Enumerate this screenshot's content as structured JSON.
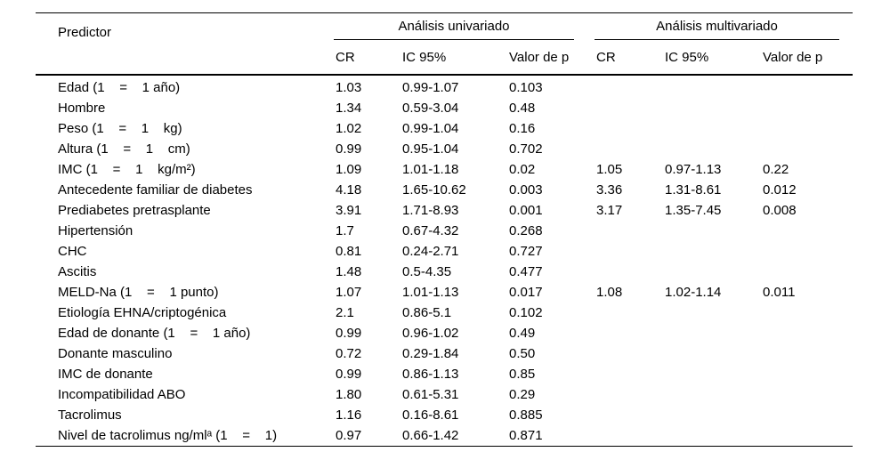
{
  "colors": {
    "background": "#ffffff",
    "text": "#000000",
    "rule": "#000000"
  },
  "table": {
    "header": {
      "predictor": "Predictor",
      "group_univariate": "Análisis univariado",
      "group_multivariate": "Análisis multivariado",
      "subheaders": [
        "CR",
        "IC 95%",
        "Valor de p",
        "CR",
        "IC 95%",
        "Valor de p"
      ]
    },
    "rows": [
      {
        "predictor": "Edad (1    =    1 año)",
        "uni_cr": "1.03",
        "uni_ic": "0.99-1.07",
        "uni_p": "0.103",
        "multi_cr": "",
        "multi_ic": "",
        "multi_p": ""
      },
      {
        "predictor": "Hombre",
        "uni_cr": "1.34",
        "uni_ic": "0.59-3.04",
        "uni_p": "0.48",
        "multi_cr": "",
        "multi_ic": "",
        "multi_p": ""
      },
      {
        "predictor": "Peso (1    =    1    kg)",
        "uni_cr": "1.02",
        "uni_ic": "0.99-1.04",
        "uni_p": "0.16",
        "multi_cr": "",
        "multi_ic": "",
        "multi_p": ""
      },
      {
        "predictor": "Altura (1    =    1    cm)",
        "uni_cr": "0.99",
        "uni_ic": "0.95-1.04",
        "uni_p": "0.702",
        "multi_cr": "",
        "multi_ic": "",
        "multi_p": ""
      },
      {
        "predictor": "IMC (1    =    1    kg/m²)",
        "uni_cr": "1.09",
        "uni_ic": "1.01-1.18",
        "uni_p": "0.02",
        "multi_cr": "1.05",
        "multi_ic": "0.97-1.13",
        "multi_p": "0.22"
      },
      {
        "predictor": "Antecedente familiar de diabetes",
        "uni_cr": "4.18",
        "uni_ic": "1.65-10.62",
        "uni_p": "0.003",
        "multi_cr": "3.36",
        "multi_ic": "1.31-8.61",
        "multi_p": "0.012"
      },
      {
        "predictor": "Prediabetes pretrasplante",
        "uni_cr": "3.91",
        "uni_ic": "1.71-8.93",
        "uni_p": "0.001",
        "multi_cr": "3.17",
        "multi_ic": "1.35-7.45",
        "multi_p": "0.008"
      },
      {
        "predictor": "Hipertensión",
        "uni_cr": "1.7",
        "uni_ic": "0.67-4.32",
        "uni_p": "0.268",
        "multi_cr": "",
        "multi_ic": "",
        "multi_p": ""
      },
      {
        "predictor": "CHC",
        "uni_cr": "0.81",
        "uni_ic": "0.24-2.71",
        "uni_p": "0.727",
        "multi_cr": "",
        "multi_ic": "",
        "multi_p": ""
      },
      {
        "predictor": "Ascitis",
        "uni_cr": "1.48",
        "uni_ic": "0.5-4.35",
        "uni_p": "0.477",
        "multi_cr": "",
        "multi_ic": "",
        "multi_p": ""
      },
      {
        "predictor": "MELD-Na (1    =    1 punto)",
        "uni_cr": "1.07",
        "uni_ic": "1.01-1.13",
        "uni_p": "0.017",
        "multi_cr": "1.08",
        "multi_ic": "1.02-1.14",
        "multi_p": "0.011"
      },
      {
        "predictor": "Etiología EHNA/criptogénica",
        "uni_cr": "2.1",
        "uni_ic": "0.86-5.1",
        "uni_p": "0.102",
        "multi_cr": "",
        "multi_ic": "",
        "multi_p": ""
      },
      {
        "predictor": "Edad de donante (1    =    1 año)",
        "uni_cr": "0.99",
        "uni_ic": "0.96-1.02",
        "uni_p": "0.49",
        "multi_cr": "",
        "multi_ic": "",
        "multi_p": ""
      },
      {
        "predictor": "Donante masculino",
        "uni_cr": "0.72",
        "uni_ic": "0.29-1.84",
        "uni_p": "0.50",
        "multi_cr": "",
        "multi_ic": "",
        "multi_p": ""
      },
      {
        "predictor": "IMC de donante",
        "uni_cr": "0.99",
        "uni_ic": "0.86-1.13",
        "uni_p": "0.85",
        "multi_cr": "",
        "multi_ic": "",
        "multi_p": ""
      },
      {
        "predictor": "Incompatibilidad ABO",
        "uni_cr": "1.80",
        "uni_ic": "0.61-5.31",
        "uni_p": "0.29",
        "multi_cr": "",
        "multi_ic": "",
        "multi_p": ""
      },
      {
        "predictor": "Tacrolimus",
        "uni_cr": "1.16",
        "uni_ic": "0.16-8.61",
        "uni_p": "0.885",
        "multi_cr": "",
        "multi_ic": "",
        "multi_p": ""
      },
      {
        "predictor": "Nivel de tacrolimus ng/mlᵃ (1    =    1)",
        "uni_cr": "0.97",
        "uni_ic": "0.66-1.42",
        "uni_p": "0.871",
        "multi_cr": "",
        "multi_ic": "",
        "multi_p": ""
      }
    ]
  }
}
